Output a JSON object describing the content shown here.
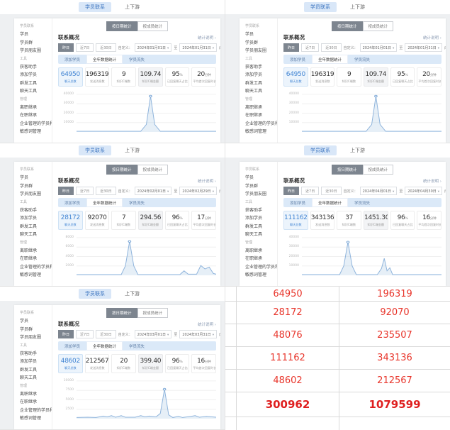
{
  "shared": {
    "top_tabs": [
      {
        "label": "学员联系",
        "active": true
      },
      {
        "label": "上下游",
        "active": false
      }
    ],
    "segmented_buttons": [
      {
        "label": "按日期统计",
        "selected": true
      },
      {
        "label": "按成员统计",
        "selected": false
      }
    ],
    "panel": {
      "title": "联系概况",
      "detail_link": "统计说明 ›",
      "range_buttons": [
        {
          "label": "昨日",
          "selected": true
        },
        {
          "label": "近7日",
          "selected": false
        },
        {
          "label": "近30日",
          "selected": false
        }
      ],
      "custom_label": "自定义：",
      "to_label": "至",
      "member_label": "成员/部门：",
      "sub_tabs": [
        {
          "label": "添加学员",
          "selected": false
        },
        {
          "label": "全年数据统计",
          "selected": true
        },
        {
          "label": "学员流失",
          "selected": false
        }
      ]
    },
    "sidebar": {
      "sections": [
        {
          "header": "学员联系",
          "items": [
            "学员",
            "学员群",
            "学员朋友圈"
          ]
        },
        {
          "header": "工具",
          "items": [
            "获客助手",
            "添加学员",
            "群发工具",
            "聊天工具"
          ]
        },
        {
          "header": "管理",
          "items": [
            "离职继承",
            "在职继承",
            "企业管理的学员和群",
            "敏感词管理"
          ]
        }
      ]
    },
    "card_labels": [
      "聊天总数",
      "发送消息数",
      "知识C端数",
      "知识C端金额",
      "已回复聊天占比",
      "平均首次回复时长"
    ],
    "card_units": [
      "",
      "",
      "",
      "",
      "%",
      "分钟"
    ],
    "colors": {
      "accent_blue": "#4285d3",
      "tab_pill_bg": "#d9e7f8",
      "selected_dark": "#7d858f",
      "subtab_bar": "#dbe9f8",
      "chart_line": "#8fb4dc",
      "table_red": "#e8352b"
    }
  },
  "dashboards": [
    {
      "id": "jan-a",
      "cell": 0,
      "artifact": true,
      "date_from": "2024年01月01日",
      "date_to": "2024年01月31日",
      "member": "全部成员、运营部门",
      "member_is_select": false,
      "values": [
        "64950",
        "196319",
        "9",
        "109.74",
        "95",
        "20"
      ],
      "chart": {
        "y_labels": [
          "40000",
          "30000",
          "20000",
          "10000"
        ],
        "points": [
          [
            0,
            0.02
          ],
          [
            46,
            0.02
          ],
          [
            50,
            0.2
          ],
          [
            53,
            0.95
          ],
          [
            56,
            0.2
          ],
          [
            60,
            0.02
          ],
          [
            100,
            0.02
          ]
        ]
      }
    },
    {
      "id": "jan-b",
      "cell": 1,
      "artifact": false,
      "date_from": "2024年01月01日",
      "date_to": "2024年01月31日",
      "member": "全部成员、运营部门",
      "member_is_select": false,
      "values": [
        "64950",
        "196319",
        "9",
        "109.74",
        "95",
        "20"
      ],
      "chart": {
        "y_labels": [
          "40000",
          "30000",
          "20000",
          "10000"
        ],
        "points": [
          [
            0,
            0.02
          ],
          [
            46,
            0.02
          ],
          [
            50,
            0.2
          ],
          [
            53,
            0.95
          ],
          [
            56,
            0.2
          ],
          [
            60,
            0.02
          ],
          [
            100,
            0.02
          ]
        ]
      }
    },
    {
      "id": "feb",
      "cell": 2,
      "artifact": false,
      "date_from": "2024年02月01日",
      "date_to": "2024年02月29日",
      "member": "运营部门",
      "member_is_select": true,
      "values": [
        "28172",
        "92070",
        "7",
        "294.56",
        "96",
        "17"
      ],
      "chart": {
        "y_labels": [
          "8000",
          "6000",
          "4000",
          "2000"
        ],
        "points": [
          [
            0,
            0.02
          ],
          [
            32,
            0.02
          ],
          [
            35,
            0.25
          ],
          [
            38,
            0.9
          ],
          [
            41,
            0.25
          ],
          [
            44,
            0.02
          ],
          [
            74,
            0.02
          ],
          [
            77,
            0.12
          ],
          [
            80,
            0.03
          ],
          [
            86,
            0.03
          ],
          [
            89,
            0.26
          ],
          [
            92,
            0.17
          ],
          [
            95,
            0.22
          ],
          [
            98,
            0.05
          ],
          [
            100,
            0.03
          ]
        ]
      }
    },
    {
      "id": "apr",
      "cell": 3,
      "artifact": false,
      "date_from": "2024年04月01日",
      "date_to": "2024年04月30日",
      "member": "运营部门",
      "member_is_select": true,
      "values": [
        "111162",
        "343136",
        "37",
        "1451.30",
        "96",
        "16"
      ],
      "chart": {
        "y_labels": [
          "40000",
          "30000",
          "20000",
          "10000"
        ],
        "points": [
          [
            0,
            0.02
          ],
          [
            27,
            0.02
          ],
          [
            30,
            0.25
          ],
          [
            33,
            0.88
          ],
          [
            36,
            0.25
          ],
          [
            39,
            0.02
          ],
          [
            54,
            0.02
          ],
          [
            57,
            0.18
          ],
          [
            59,
            0.45
          ],
          [
            61,
            0.12
          ],
          [
            63,
            0.2
          ],
          [
            65,
            0.02
          ],
          [
            100,
            0.02
          ]
        ]
      }
    },
    {
      "id": "mar",
      "cell": 4,
      "artifact": false,
      "date_from": "2024年03月01日",
      "date_to": "2024年03月31日",
      "member": "全部成员",
      "member_is_select": true,
      "values": [
        "48602",
        "212567",
        "20",
        "399.40",
        "96",
        "16"
      ],
      "chart": {
        "y_labels": [
          "10000",
          "7500",
          "5000",
          "2500"
        ],
        "points": [
          [
            0,
            0.03
          ],
          [
            8,
            0.04
          ],
          [
            14,
            0.03
          ],
          [
            19,
            0.07
          ],
          [
            22,
            0.05
          ],
          [
            25,
            0.08
          ],
          [
            28,
            0.04
          ],
          [
            32,
            0.08
          ],
          [
            35,
            0.04
          ],
          [
            42,
            0.04
          ],
          [
            46,
            0.08
          ],
          [
            49,
            0.05
          ],
          [
            52,
            0.07
          ],
          [
            57,
            0.05
          ],
          [
            60,
            0.14
          ],
          [
            63,
            0.78
          ],
          [
            66,
            0.1
          ],
          [
            69,
            0.03
          ],
          [
            73,
            0.06
          ],
          [
            76,
            0.03
          ],
          [
            82,
            0.06
          ],
          [
            85,
            0.08
          ],
          [
            88,
            0.04
          ],
          [
            93,
            0.06
          ],
          [
            100,
            0.04
          ]
        ]
      }
    }
  ],
  "comparison_table": {
    "rows": [
      [
        "64950",
        "196319"
      ],
      [
        "28172",
        "92070"
      ],
      [
        "48076",
        "235507"
      ],
      [
        "111162",
        "343136"
      ],
      [
        "48602",
        "212567"
      ]
    ],
    "total_row": [
      "300962",
      "1079599"
    ]
  }
}
